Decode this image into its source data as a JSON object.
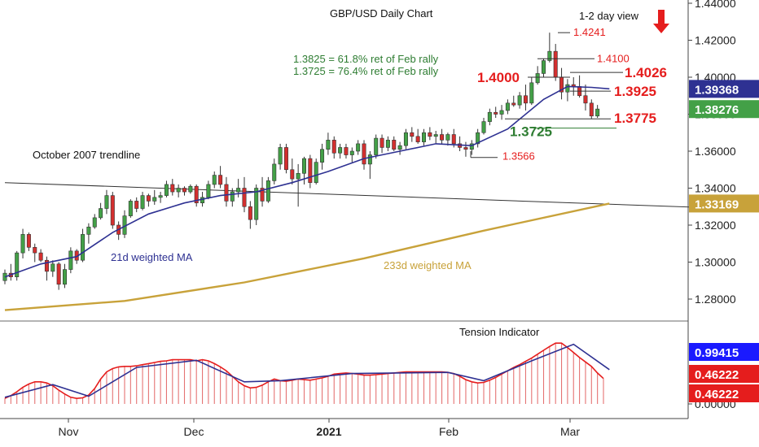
{
  "chart_data": {
    "type": "candlestick",
    "title": "GBP/USD Daily Chart",
    "view_label": "1-2 day view",
    "view_direction": "down",
    "x_labels": [
      {
        "label": "Nov",
        "bold": false
      },
      {
        "label": "Dec",
        "bold": false
      },
      {
        "label": "2021",
        "bold": true
      },
      {
        "label": "Feb",
        "bold": false
      },
      {
        "label": "Mar",
        "bold": false
      }
    ],
    "y_ticks": [
      "1.44000",
      "1.42000",
      "1.40000",
      "1.38000",
      "1.36000",
      "1.34000",
      "1.32000",
      "1.30000",
      "1.28000"
    ],
    "price_badges": [
      {
        "label": "1.39368",
        "value": 1.39368,
        "color": "#2e3192"
      },
      {
        "label": "1.38276",
        "value": 1.38276,
        "color": "#43a047"
      },
      {
        "label": "1.33169",
        "value": 1.33169,
        "color": "#c8a23a"
      }
    ],
    "annotations": {
      "fib_line1": "1.3825 = 61.8% ret of Feb rally",
      "fib_line2": "1.3725 = 76.4% ret of Feb rally",
      "trendline": "October 2007 trendline",
      "ma21": "21d weighted MA",
      "ma233": "233d weighted MA",
      "tension": "Tension Indicator"
    },
    "levels": [
      {
        "label": "1.4241",
        "value": 1.4241,
        "color": "#e51d1d",
        "size": "small"
      },
      {
        "label": "1.4100",
        "value": 1.41,
        "color": "#e51d1d",
        "size": "small"
      },
      {
        "label": "1.4026",
        "value": 1.4026,
        "color": "#e51d1d",
        "size": "large"
      },
      {
        "label": "1.4000",
        "value": 1.4,
        "color": "#e51d1d",
        "size": "large"
      },
      {
        "label": "1.3925",
        "value": 1.3925,
        "color": "#e51d1d",
        "size": "large"
      },
      {
        "label": "1.3775",
        "value": 1.3775,
        "color": "#e51d1d",
        "size": "large"
      },
      {
        "label": "1.3725",
        "value": 1.3725,
        "color": "#2e7d32",
        "size": "large"
      },
      {
        "label": "1.3566",
        "value": 1.3566,
        "color": "#e51d1d",
        "size": "small"
      }
    ],
    "indicator_ticks": [
      "0.00000"
    ],
    "indicator_badges": [
      {
        "label": "0.99415",
        "value": 0.99415,
        "color": "#1a1aff"
      },
      {
        "label": "0.46222",
        "value": 0.46222,
        "color": "#e51d1d"
      },
      {
        "label": "0.46222",
        "value": 0.46222,
        "color": "#e51d1d"
      }
    ],
    "candles": [
      [
        1.29,
        1.296,
        1.288,
        1.294
      ],
      [
        1.294,
        1.299,
        1.29,
        1.292
      ],
      [
        1.292,
        1.306,
        1.29,
        1.305
      ],
      [
        1.305,
        1.318,
        1.302,
        1.315
      ],
      [
        1.315,
        1.316,
        1.306,
        1.308
      ],
      [
        1.308,
        1.31,
        1.3,
        1.305
      ],
      [
        1.305,
        1.307,
        1.3,
        1.301
      ],
      [
        1.301,
        1.303,
        1.29,
        1.295
      ],
      [
        1.295,
        1.301,
        1.292,
        1.299
      ],
      [
        1.299,
        1.3,
        1.285,
        1.288
      ],
      [
        1.288,
        1.299,
        1.286,
        1.296
      ],
      [
        1.296,
        1.308,
        1.294,
        1.306
      ],
      [
        1.306,
        1.307,
        1.299,
        1.301
      ],
      [
        1.301,
        1.318,
        1.3,
        1.315
      ],
      [
        1.315,
        1.321,
        1.31,
        1.319
      ],
      [
        1.319,
        1.326,
        1.318,
        1.324
      ],
      [
        1.324,
        1.332,
        1.323,
        1.329
      ],
      [
        1.329,
        1.339,
        1.326,
        1.336
      ],
      [
        1.336,
        1.338,
        1.318,
        1.32
      ],
      [
        1.32,
        1.322,
        1.312,
        1.315
      ],
      [
        1.315,
        1.328,
        1.313,
        1.325
      ],
      [
        1.325,
        1.334,
        1.324,
        1.333
      ],
      [
        1.333,
        1.335,
        1.327,
        1.329
      ],
      [
        1.329,
        1.338,
        1.328,
        1.336
      ],
      [
        1.336,
        1.337,
        1.33,
        1.333
      ],
      [
        1.333,
        1.339,
        1.331,
        1.335
      ],
      [
        1.335,
        1.338,
        1.332,
        1.336
      ],
      [
        1.336,
        1.344,
        1.335,
        1.342
      ],
      [
        1.342,
        1.345,
        1.336,
        1.338
      ],
      [
        1.338,
        1.342,
        1.335,
        1.34
      ],
      [
        1.34,
        1.341,
        1.336,
        1.338
      ],
      [
        1.338,
        1.342,
        1.337,
        1.341
      ],
      [
        1.341,
        1.342,
        1.33,
        1.332
      ],
      [
        1.332,
        1.338,
        1.33,
        1.335
      ],
      [
        1.335,
        1.344,
        1.334,
        1.342
      ],
      [
        1.342,
        1.349,
        1.34,
        1.347
      ],
      [
        1.347,
        1.352,
        1.34,
        1.342
      ],
      [
        1.342,
        1.346,
        1.33,
        1.333
      ],
      [
        1.333,
        1.34,
        1.33,
        1.338
      ],
      [
        1.338,
        1.345,
        1.335,
        1.34
      ],
      [
        1.34,
        1.346,
        1.327,
        1.33
      ],
      [
        1.33,
        1.333,
        1.318,
        1.323
      ],
      [
        1.323,
        1.342,
        1.32,
        1.34
      ],
      [
        1.34,
        1.346,
        1.33,
        1.333
      ],
      [
        1.333,
        1.346,
        1.332,
        1.344
      ],
      [
        1.344,
        1.356,
        1.342,
        1.353
      ],
      [
        1.353,
        1.364,
        1.35,
        1.362
      ],
      [
        1.362,
        1.364,
        1.348,
        1.35
      ],
      [
        1.35,
        1.356,
        1.342,
        1.345
      ],
      [
        1.345,
        1.353,
        1.33,
        1.348
      ],
      [
        1.348,
        1.357,
        1.342,
        1.356
      ],
      [
        1.356,
        1.358,
        1.34,
        1.343
      ],
      [
        1.343,
        1.356,
        1.342,
        1.354
      ],
      [
        1.354,
        1.364,
        1.35,
        1.361
      ],
      [
        1.361,
        1.37,
        1.358,
        1.366
      ],
      [
        1.366,
        1.368,
        1.356,
        1.359
      ],
      [
        1.359,
        1.364,
        1.356,
        1.362
      ],
      [
        1.362,
        1.364,
        1.356,
        1.358
      ],
      [
        1.358,
        1.362,
        1.354,
        1.36
      ],
      [
        1.36,
        1.366,
        1.358,
        1.364
      ],
      [
        1.364,
        1.366,
        1.35,
        1.353
      ],
      [
        1.353,
        1.36,
        1.345,
        1.358
      ],
      [
        1.358,
        1.369,
        1.356,
        1.367
      ],
      [
        1.367,
        1.369,
        1.359,
        1.362
      ],
      [
        1.362,
        1.368,
        1.36,
        1.366
      ],
      [
        1.366,
        1.368,
        1.36,
        1.361
      ],
      [
        1.361,
        1.365,
        1.358,
        1.363
      ],
      [
        1.363,
        1.372,
        1.361,
        1.37
      ],
      [
        1.37,
        1.373,
        1.365,
        1.368
      ],
      [
        1.368,
        1.372,
        1.364,
        1.365
      ],
      [
        1.365,
        1.372,
        1.363,
        1.37
      ],
      [
        1.37,
        1.373,
        1.366,
        1.368
      ],
      [
        1.368,
        1.371,
        1.364,
        1.369
      ],
      [
        1.369,
        1.372,
        1.364,
        1.366
      ],
      [
        1.366,
        1.37,
        1.363,
        1.369
      ],
      [
        1.369,
        1.372,
        1.362,
        1.364
      ],
      [
        1.364,
        1.368,
        1.36,
        1.362
      ],
      [
        1.362,
        1.365,
        1.357,
        1.361
      ],
      [
        1.361,
        1.366,
        1.358,
        1.364
      ],
      [
        1.364,
        1.372,
        1.362,
        1.37
      ],
      [
        1.37,
        1.378,
        1.369,
        1.376
      ],
      [
        1.376,
        1.383,
        1.374,
        1.381
      ],
      [
        1.381,
        1.384,
        1.378,
        1.38
      ],
      [
        1.38,
        1.385,
        1.377,
        1.382
      ],
      [
        1.382,
        1.388,
        1.38,
        1.386
      ],
      [
        1.386,
        1.39,
        1.384,
        1.385
      ],
      [
        1.385,
        1.392,
        1.383,
        1.39
      ],
      [
        1.39,
        1.396,
        1.382,
        1.386
      ],
      [
        1.386,
        1.4,
        1.385,
        1.397
      ],
      [
        1.397,
        1.406,
        1.396,
        1.402
      ],
      [
        1.402,
        1.41,
        1.4,
        1.409
      ],
      [
        1.409,
        1.4241,
        1.408,
        1.414
      ],
      [
        1.414,
        1.418,
        1.398,
        1.4
      ],
      [
        1.4,
        1.405,
        1.388,
        1.392
      ],
      [
        1.392,
        1.399,
        1.387,
        1.396
      ],
      [
        1.396,
        1.4,
        1.39,
        1.395
      ],
      [
        1.395,
        1.401,
        1.389,
        1.39
      ],
      [
        1.39,
        1.396,
        1.382,
        1.386
      ],
      [
        1.386,
        1.388,
        1.3775,
        1.379
      ],
      [
        1.379,
        1.385,
        1.378,
        1.3828
      ]
    ],
    "ma21": [
      [
        0,
        1.292
      ],
      [
        6,
        1.299
      ],
      [
        12,
        1.303
      ],
      [
        18,
        1.316
      ],
      [
        24,
        1.326
      ],
      [
        30,
        1.332
      ],
      [
        36,
        1.336
      ],
      [
        42,
        1.338
      ],
      [
        48,
        1.343
      ],
      [
        54,
        1.349
      ],
      [
        60,
        1.356
      ],
      [
        66,
        1.36
      ],
      [
        72,
        1.364
      ],
      [
        78,
        1.363
      ],
      [
        84,
        1.372
      ],
      [
        90,
        1.388
      ],
      [
        94,
        1.395
      ],
      [
        98,
        1.3945
      ],
      [
        101,
        1.3937
      ]
    ],
    "ma233": [
      [
        0,
        1.274
      ],
      [
        20,
        1.279
      ],
      [
        40,
        1.289
      ],
      [
        60,
        1.302
      ],
      [
        80,
        1.317
      ],
      [
        101,
        1.3317
      ]
    ],
    "trendline": [
      [
        0,
        1.343
      ],
      [
        121,
        1.329
      ]
    ],
    "tension": [
      0.1,
      0.15,
      0.22,
      0.3,
      0.36,
      0.4,
      0.4,
      0.38,
      0.33,
      0.25,
      0.18,
      0.12,
      0.1,
      0.11,
      0.16,
      0.28,
      0.45,
      0.58,
      0.64,
      0.67,
      0.68,
      0.68,
      0.69,
      0.71,
      0.73,
      0.75,
      0.77,
      0.78,
      0.8,
      0.8,
      0.8,
      0.8,
      0.78,
      0.8,
      0.78,
      0.73,
      0.67,
      0.6,
      0.5,
      0.4,
      0.33,
      0.29,
      0.3,
      0.34,
      0.4,
      0.45,
      0.42,
      0.41,
      0.43,
      0.45,
      0.44,
      0.43,
      0.45,
      0.47,
      0.5,
      0.54,
      0.55,
      0.56,
      0.55,
      0.54,
      0.52,
      0.52,
      0.53,
      0.54,
      0.55,
      0.56,
      0.57,
      0.58,
      0.58,
      0.58,
      0.58,
      0.58,
      0.58,
      0.58,
      0.57,
      0.55,
      0.5,
      0.44,
      0.4,
      0.38,
      0.39,
      0.43,
      0.48,
      0.54,
      0.6,
      0.66,
      0.71,
      0.77,
      0.83,
      0.9,
      0.97,
      1.04,
      1.1,
      1.1,
      1.02,
      0.93,
      0.84,
      0.76,
      0.68,
      0.56,
      0.46
    ],
    "tension_ma": [
      [
        0,
        0.12
      ],
      [
        8,
        0.35
      ],
      [
        14,
        0.14
      ],
      [
        22,
        0.66
      ],
      [
        32,
        0.79
      ],
      [
        40,
        0.4
      ],
      [
        46,
        0.42
      ],
      [
        58,
        0.55
      ],
      [
        74,
        0.57
      ],
      [
        80,
        0.42
      ],
      [
        88,
        0.78
      ],
      [
        95,
        1.08
      ],
      [
        101,
        0.62
      ]
    ]
  }
}
